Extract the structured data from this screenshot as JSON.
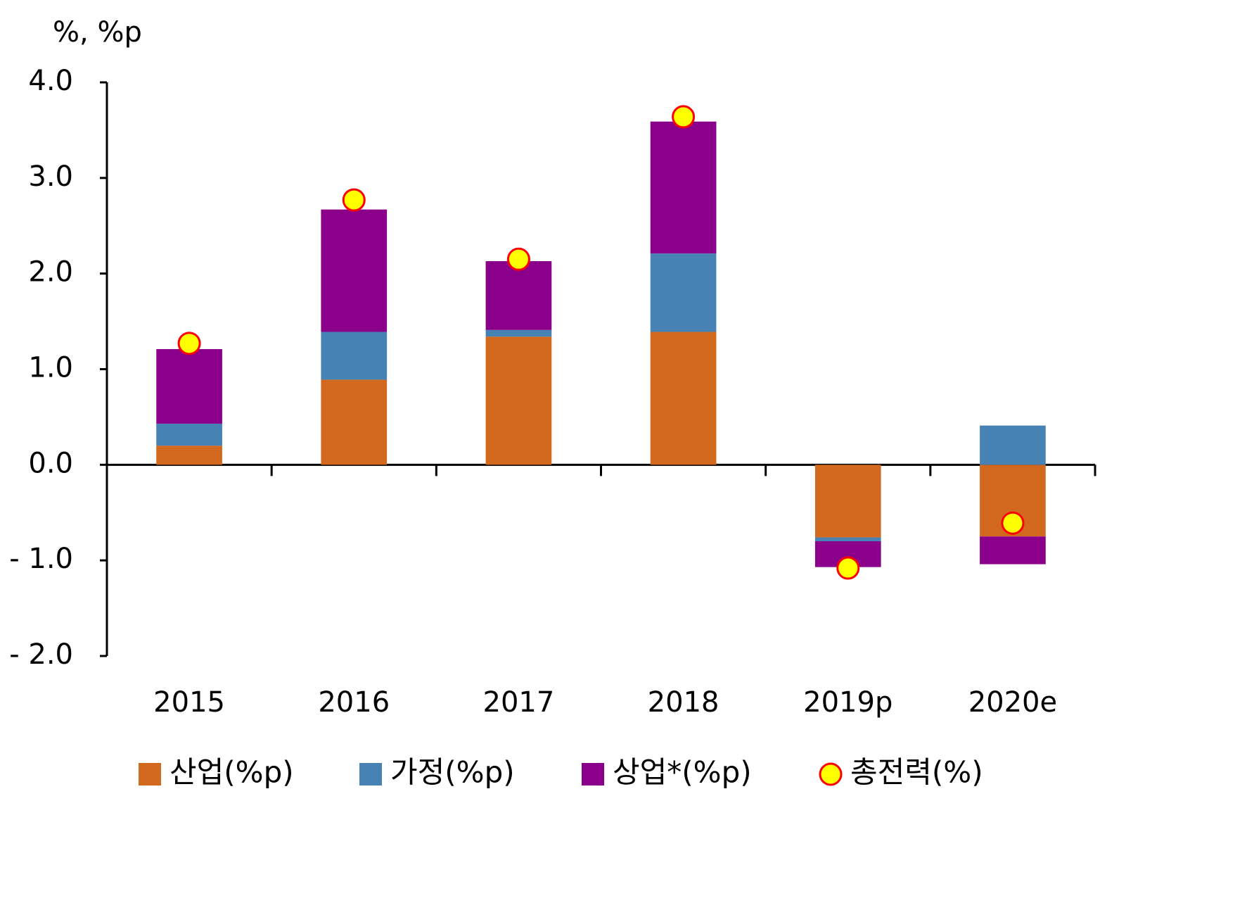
{
  "chart_data": {
    "type": "bar",
    "stacked": true,
    "y_unit_label": "%, %p",
    "categories": [
      "2015",
      "2016",
      "2017",
      "2018",
      "2019p",
      "2020e"
    ],
    "series": [
      {
        "name": "산업(%p)",
        "type": "bar",
        "color": "#d2691e",
        "values": [
          0.2,
          0.89,
          1.34,
          1.39,
          -0.76,
          -0.75
        ]
      },
      {
        "name": "가정(%p)",
        "type": "bar",
        "color": "#4682b4",
        "values": [
          0.23,
          0.5,
          0.07,
          0.82,
          -0.04,
          0.41
        ]
      },
      {
        "name": "상업*(%p)",
        "type": "bar",
        "color": "#8b008b",
        "values": [
          0.78,
          1.28,
          0.72,
          1.38,
          -0.27,
          -0.29
        ]
      },
      {
        "name": "총전력(%)",
        "type": "scatter",
        "color": "#ffff00",
        "edgecolor": "#ff0000",
        "values": [
          1.27,
          2.77,
          2.15,
          3.64,
          -1.08,
          -0.61
        ]
      }
    ],
    "ylim": [
      -2,
      4
    ],
    "yticks": [
      {
        "value": -2,
        "label": "- 2.0"
      },
      {
        "value": -1,
        "label": "- 1.0"
      },
      {
        "value": 0,
        "label": "0.0"
      },
      {
        "value": 1,
        "label": "1.0"
      },
      {
        "value": 2,
        "label": "2.0"
      },
      {
        "value": 3,
        "label": "3.0"
      },
      {
        "value": 4,
        "label": "4.0"
      }
    ],
    "grid": false,
    "legend": "bottom"
  }
}
